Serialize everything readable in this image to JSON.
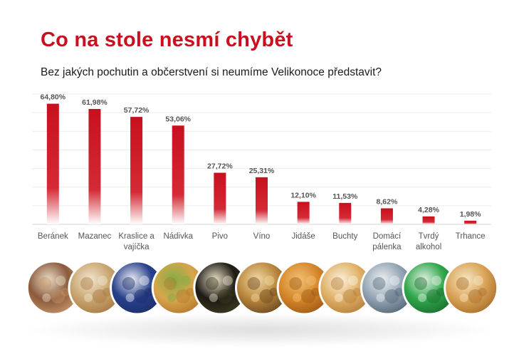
{
  "title": "Co na stole nesmí chybět",
  "subtitle": "Bez jakých pochutin a občerstvení si neumíme Velikonoce představit?",
  "colors": {
    "title": "#c8101e",
    "bar_top": "#c8101e",
    "bar_bottom": "#ffffff",
    "grid": "#e6e6e6"
  },
  "chart_data": {
    "type": "bar",
    "title": "Co na stole nesmí chybět",
    "subtitle": "Bez jakých pochutin a občerstvení si neumíme Velikonoce představit?",
    "categories": [
      [
        "Beránek"
      ],
      [
        "Mazanec"
      ],
      [
        "Kraslice a",
        "vajíčka"
      ],
      [
        "Nádivka"
      ],
      [
        "Pivo"
      ],
      [
        "Víno"
      ],
      [
        "Jidáše"
      ],
      [
        "Buchty"
      ],
      [
        "Domácí",
        "pálenka"
      ],
      [
        "Tvrdý",
        "alkohol"
      ],
      [
        "Trhance"
      ]
    ],
    "values": [
      64.8,
      61.98,
      57.72,
      53.06,
      27.72,
      25.31,
      12.1,
      11.53,
      8.62,
      4.28,
      1.98
    ],
    "value_labels": [
      "64,80%",
      "61,98%",
      "57,72%",
      "53,06%",
      "27,72%",
      "25,31%",
      "12,10%",
      "11,53%",
      "8,62%",
      "4,28%",
      "1,98%"
    ],
    "ylim": [
      0,
      70
    ],
    "grid": true,
    "legend": "none"
  },
  "photos": [
    {
      "icon": "lamb-cake-icon",
      "colors": [
        "#8a5a3c",
        "#e9dcc6",
        "#c49467"
      ]
    },
    {
      "icon": "mazanec-bread-icon",
      "colors": [
        "#c9a571",
        "#f1e6cf",
        "#a87b43"
      ]
    },
    {
      "icon": "painted-eggs-icon",
      "colors": [
        "#27408b",
        "#f0f0f5",
        "#1d2f6b"
      ]
    },
    {
      "icon": "stuffing-slices-icon",
      "colors": [
        "#d8a64c",
        "#7fae45",
        "#b5782e"
      ]
    },
    {
      "icon": "beer-wine-bottles-icon",
      "colors": [
        "#1e1a14",
        "#e9e1c8",
        "#3b3a22"
      ]
    },
    {
      "icon": "wine-glass-icon",
      "colors": [
        "#b8863c",
        "#f2d9a4",
        "#6a4720"
      ]
    },
    {
      "icon": "jidase-pastry-icon",
      "colors": [
        "#d5862a",
        "#f3c276",
        "#9e5a15"
      ]
    },
    {
      "icon": "buchty-buns-icon",
      "colors": [
        "#e0b066",
        "#faf0dc",
        "#b57f3c"
      ]
    },
    {
      "icon": "shot-glasses-icon",
      "colors": [
        "#93a4b3",
        "#eef2f4",
        "#556677"
      ]
    },
    {
      "icon": "green-liquor-icon",
      "colors": [
        "#2fa64a",
        "#e4f1e7",
        "#1c6e2f"
      ]
    },
    {
      "icon": "trhance-pastry-icon",
      "colors": [
        "#d9a357",
        "#f7e7c5",
        "#a86f2a"
      ]
    }
  ]
}
